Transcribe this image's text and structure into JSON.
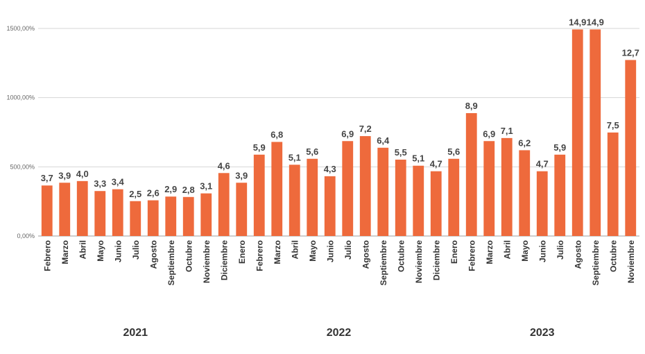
{
  "chart_data": {
    "type": "bar",
    "title": "",
    "xlabel": "",
    "ylabel": "",
    "color": "#ee6a3c",
    "grid": true,
    "ylim": [
      0,
      1500
    ],
    "yticks": [
      0,
      500,
      1000,
      1500
    ],
    "ytick_labels": [
      "0,00%",
      "500,00%",
      "1000,00%",
      "1500,00%"
    ],
    "years": [
      {
        "label": "2021",
        "first": 0,
        "last": 10
      },
      {
        "label": "2022",
        "first": 11,
        "last": 22
      },
      {
        "label": "2023",
        "first": 23,
        "last": 33
      }
    ],
    "categories": [
      "Febrero",
      "Marzo",
      "Abril",
      "Mayo",
      "Junio",
      "Julio",
      "Agosto",
      "Septiembre",
      "Octubre",
      "Noviembre",
      "Diciembre",
      "Enero",
      "Febrero",
      "Marzo",
      "Abril",
      "Mayo",
      "Junio",
      "Julio",
      "Agosto",
      "Septiembre",
      "Octubre",
      "Noviembre",
      "Diciembre",
      "Enero",
      "Febrero",
      "Marzo",
      "Abril",
      "Mayo",
      "Junio",
      "Julio",
      "Agosto",
      "Septiembre",
      "Octubre",
      "Noviembre"
    ],
    "values": [
      365,
      385,
      397,
      325,
      338,
      252,
      258,
      285,
      282,
      308,
      455,
      385,
      588,
      680,
      515,
      558,
      432,
      686,
      722,
      638,
      552,
      508,
      468,
      558,
      888,
      686,
      708,
      620,
      468,
      588,
      1493,
      1493,
      748,
      1272
    ],
    "data_labels": [
      "3,7",
      "3,9",
      "4,0",
      "3,3",
      "3,4",
      "2,5",
      "2,6",
      "2,9",
      "2,8",
      "3,1",
      "4,6",
      "3,9",
      "5,9",
      "6,8",
      "5,1",
      "5,6",
      "4,3",
      "6,9",
      "7,2",
      "6,4",
      "5,5",
      "5,1",
      "4,7",
      "5,6",
      "8,9",
      "6,9",
      "7,1",
      "6,2",
      "4,7",
      "5,9",
      "14,9",
      "14,9",
      "7,5",
      "12,7"
    ]
  }
}
